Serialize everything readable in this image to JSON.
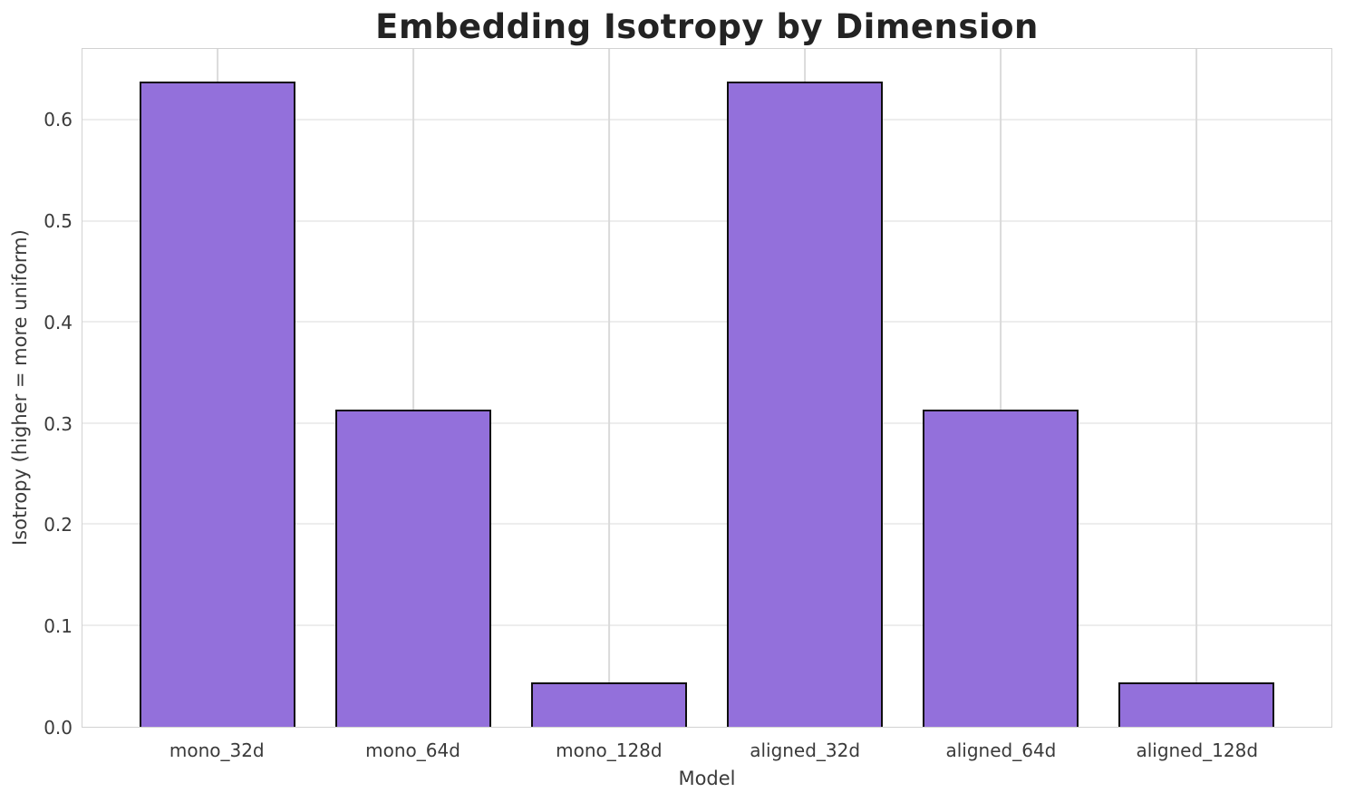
{
  "chart_data": {
    "type": "bar",
    "title": "Embedding Isotropy by Dimension",
    "xlabel": "Model",
    "ylabel": "Isotropy (higher = more uniform)",
    "categories": [
      "mono_32d",
      "mono_64d",
      "mono_128d",
      "aligned_32d",
      "aligned_64d",
      "aligned_128d"
    ],
    "values": [
      0.639,
      0.314,
      0.044,
      0.639,
      0.314,
      0.044
    ],
    "yticks": [
      0.0,
      0.1,
      0.2,
      0.3,
      0.4,
      0.5,
      0.6
    ],
    "ylim": [
      0,
      0.671
    ],
    "xlim": [
      -0.69,
      5.69
    ],
    "bar_width": 0.8,
    "grid": true,
    "legend": "none",
    "colors": {
      "bar_fill": "#9370DB",
      "bar_edge": "#0e0e0e",
      "grid_horizontal": "#ededed",
      "grid_vertical": "#dadada",
      "spine": "#d2d2d2",
      "title_text": "#232323",
      "tick_text": "#3a3a3a",
      "background": "#ffffff"
    }
  }
}
